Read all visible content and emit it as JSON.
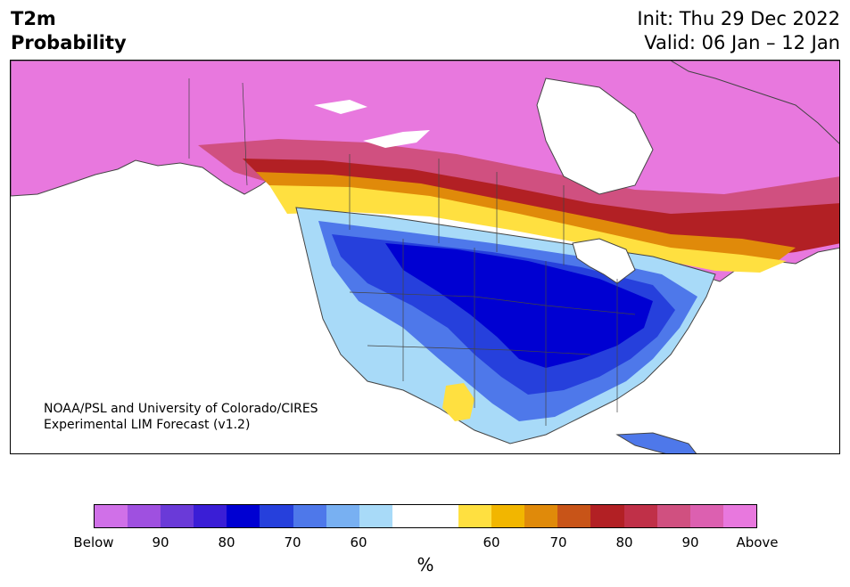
{
  "title": {
    "variable": "T2m",
    "type": "Probability"
  },
  "info": {
    "init": "Init: Thu 29 Dec 2022",
    "valid": "Valid: 06 Jan – 12 Jan"
  },
  "credit": {
    "line1": "NOAA/PSL and University of Colorado/CIRES",
    "line2": "Experimental LIM Forecast (v1.2)"
  },
  "colorbar": {
    "colors": [
      "#d070e8",
      "#9f50e0",
      "#6a3ad8",
      "#3a1ed6",
      "#0000d2",
      "#2640dc",
      "#4e78ea",
      "#78b0f2",
      "#a8daf8",
      "#ffffff",
      "#ffffff",
      "#ffe040",
      "#f2b600",
      "#e08a0a",
      "#c85418",
      "#b22024",
      "#c03048",
      "#d05080",
      "#dc60b0",
      "#e878de"
    ],
    "ticks": [
      "Below",
      "90",
      "80",
      "70",
      "60",
      "60",
      "70",
      "80",
      "90",
      "Above"
    ],
    "unit": "%"
  }
}
